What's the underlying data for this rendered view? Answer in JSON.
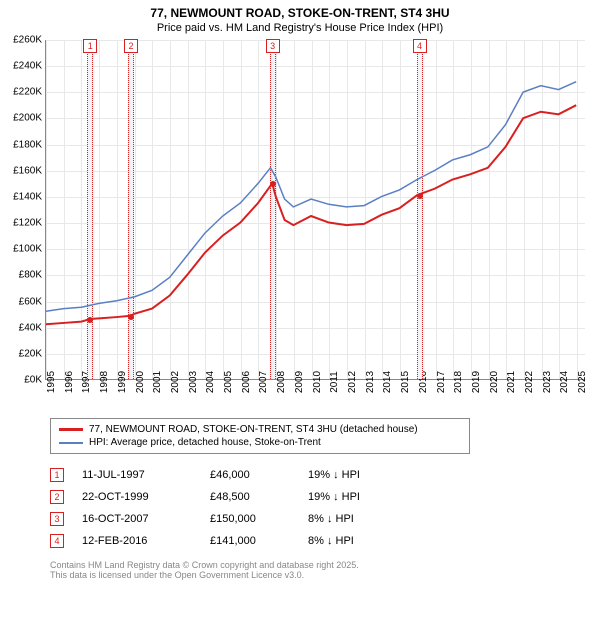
{
  "title_line1": "77, NEWMOUNT ROAD, STOKE-ON-TRENT, ST4 3HU",
  "title_line2": "Price paid vs. HM Land Registry's House Price Index (HPI)",
  "chart": {
    "type": "line",
    "background_color": "#ffffff",
    "grid_color": "#e8e8e8",
    "axis_color": "#888888",
    "label_fontsize": 10,
    "ylim": [
      0,
      260000
    ],
    "ytick_step": 20000,
    "yticks": [
      "£0K",
      "£20K",
      "£40K",
      "£60K",
      "£80K",
      "£100K",
      "£120K",
      "£140K",
      "£160K",
      "£180K",
      "£200K",
      "£220K",
      "£240K",
      "£260K"
    ],
    "xlim": [
      1995,
      2025.5
    ],
    "xticks": [
      1995,
      1996,
      1997,
      1998,
      1999,
      2000,
      2001,
      2002,
      2003,
      2004,
      2005,
      2006,
      2007,
      2008,
      2009,
      2010,
      2011,
      2012,
      2013,
      2014,
      2015,
      2016,
      2017,
      2018,
      2019,
      2020,
      2021,
      2022,
      2023,
      2024,
      2025
    ],
    "series": [
      {
        "id": "hpi",
        "color": "#5a7fc4",
        "width": 1.5,
        "points": [
          [
            1995,
            52000
          ],
          [
            1996,
            54000
          ],
          [
            1997,
            55000
          ],
          [
            1998,
            58000
          ],
          [
            1999,
            60000
          ],
          [
            2000,
            63000
          ],
          [
            2001,
            68000
          ],
          [
            2002,
            78000
          ],
          [
            2003,
            95000
          ],
          [
            2004,
            112000
          ],
          [
            2005,
            125000
          ],
          [
            2006,
            135000
          ],
          [
            2007,
            150000
          ],
          [
            2007.7,
            162000
          ],
          [
            2008,
            155000
          ],
          [
            2008.5,
            138000
          ],
          [
            2009,
            132000
          ],
          [
            2010,
            138000
          ],
          [
            2011,
            134000
          ],
          [
            2012,
            132000
          ],
          [
            2013,
            133000
          ],
          [
            2014,
            140000
          ],
          [
            2015,
            145000
          ],
          [
            2016,
            153000
          ],
          [
            2017,
            160000
          ],
          [
            2018,
            168000
          ],
          [
            2019,
            172000
          ],
          [
            2020,
            178000
          ],
          [
            2021,
            195000
          ],
          [
            2022,
            220000
          ],
          [
            2023,
            225000
          ],
          [
            2024,
            222000
          ],
          [
            2025,
            228000
          ]
        ]
      },
      {
        "id": "paid",
        "color": "#d92020",
        "width": 2,
        "points": [
          [
            1995,
            42000
          ],
          [
            1996,
            43000
          ],
          [
            1997,
            44000
          ],
          [
            1997.5,
            46000
          ],
          [
            1998,
            46500
          ],
          [
            1999,
            47500
          ],
          [
            1999.8,
            48500
          ],
          [
            2000,
            50000
          ],
          [
            2001,
            54000
          ],
          [
            2002,
            64000
          ],
          [
            2003,
            80000
          ],
          [
            2004,
            97000
          ],
          [
            2005,
            110000
          ],
          [
            2006,
            120000
          ],
          [
            2007,
            135000
          ],
          [
            2007.8,
            150000
          ],
          [
            2008,
            140000
          ],
          [
            2008.5,
            122000
          ],
          [
            2009,
            118000
          ],
          [
            2010,
            125000
          ],
          [
            2011,
            120000
          ],
          [
            2012,
            118000
          ],
          [
            2013,
            119000
          ],
          [
            2014,
            126000
          ],
          [
            2015,
            131000
          ],
          [
            2016,
            141000
          ],
          [
            2017,
            146000
          ],
          [
            2018,
            153000
          ],
          [
            2019,
            157000
          ],
          [
            2020,
            162000
          ],
          [
            2021,
            178000
          ],
          [
            2022,
            200000
          ],
          [
            2023,
            205000
          ],
          [
            2024,
            203000
          ],
          [
            2025,
            210000
          ]
        ]
      }
    ],
    "price_markers": [
      {
        "n": "1",
        "x": 1997.5,
        "y": 46000,
        "color": "#d92020"
      },
      {
        "n": "2",
        "x": 1999.8,
        "y": 48500,
        "color": "#d92020"
      },
      {
        "n": "3",
        "x": 2007.8,
        "y": 150000,
        "color": "#d92020"
      },
      {
        "n": "4",
        "x": 2016.1,
        "y": 141000,
        "color": "#d92020"
      }
    ],
    "marker_band_color": "#d92020",
    "marker_band_bg": "#f2f2f7"
  },
  "legend": {
    "items": [
      {
        "color": "#d92020",
        "width": 3,
        "label": "77, NEWMOUNT ROAD, STOKE-ON-TRENT, ST4 3HU (detached house)"
      },
      {
        "color": "#5a7fc4",
        "width": 2,
        "label": "HPI: Average price, detached house, Stoke-on-Trent"
      }
    ]
  },
  "transactions": [
    {
      "n": "1",
      "color": "#d92020",
      "date": "11-JUL-1997",
      "price": "£46,000",
      "delta": "19% ↓ HPI"
    },
    {
      "n": "2",
      "color": "#d92020",
      "date": "22-OCT-1999",
      "price": "£48,500",
      "delta": "19% ↓ HPI"
    },
    {
      "n": "3",
      "color": "#d92020",
      "date": "16-OCT-2007",
      "price": "£150,000",
      "delta": "8% ↓ HPI"
    },
    {
      "n": "4",
      "color": "#d92020",
      "date": "12-FEB-2016",
      "price": "£141,000",
      "delta": "8% ↓ HPI"
    }
  ],
  "footer": {
    "line1": "Contains HM Land Registry data © Crown copyright and database right 2025.",
    "line2": "This data is licensed under the Open Government Licence v3.0."
  }
}
